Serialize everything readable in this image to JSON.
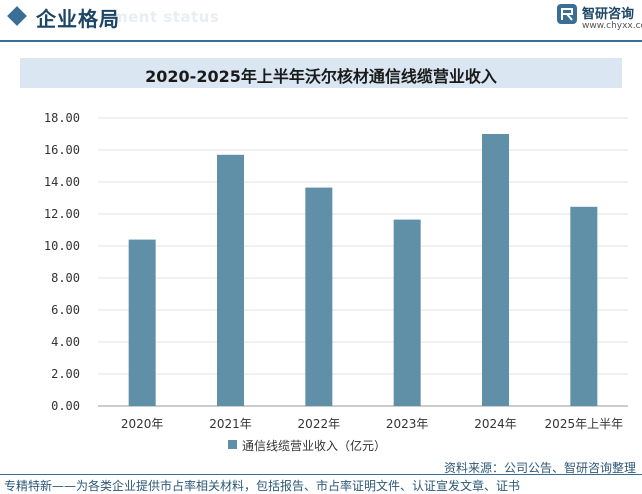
{
  "header": {
    "section_title": "企业格局",
    "section_ghost": "ment status",
    "brand_name": "智研咨询",
    "brand_url": "www.chyxx.com"
  },
  "colors": {
    "accent": "#3a6e95",
    "bar": "#5f90a8",
    "title_band": "#dae7f3"
  },
  "chart_data": {
    "type": "bar",
    "title": "2020-2025年上半年沃尔核材通信线缆营业收入",
    "categories": [
      "2020年",
      "2021年",
      "2022年",
      "2023年",
      "2024年",
      "2025年上半年"
    ],
    "series": [
      {
        "name": "通信线缆营业收入（亿元）",
        "values": [
          10.4,
          15.7,
          13.65,
          11.65,
          17.0,
          12.45
        ]
      }
    ],
    "yticks": [
      "0.00",
      "2.00",
      "4.00",
      "6.00",
      "8.00",
      "10.00",
      "12.00",
      "14.00",
      "16.00",
      "18.00"
    ],
    "ylim": [
      0,
      18
    ],
    "xlabel": "",
    "ylabel": "",
    "grid": true,
    "legend_position": "bottom"
  },
  "source_text": "资料来源：公司公告、智研咨询整理",
  "footer_text": "专精特新——为各类企业提供市占率相关材料，包括报告、市占率证明文件、认证宣发文章、证书"
}
